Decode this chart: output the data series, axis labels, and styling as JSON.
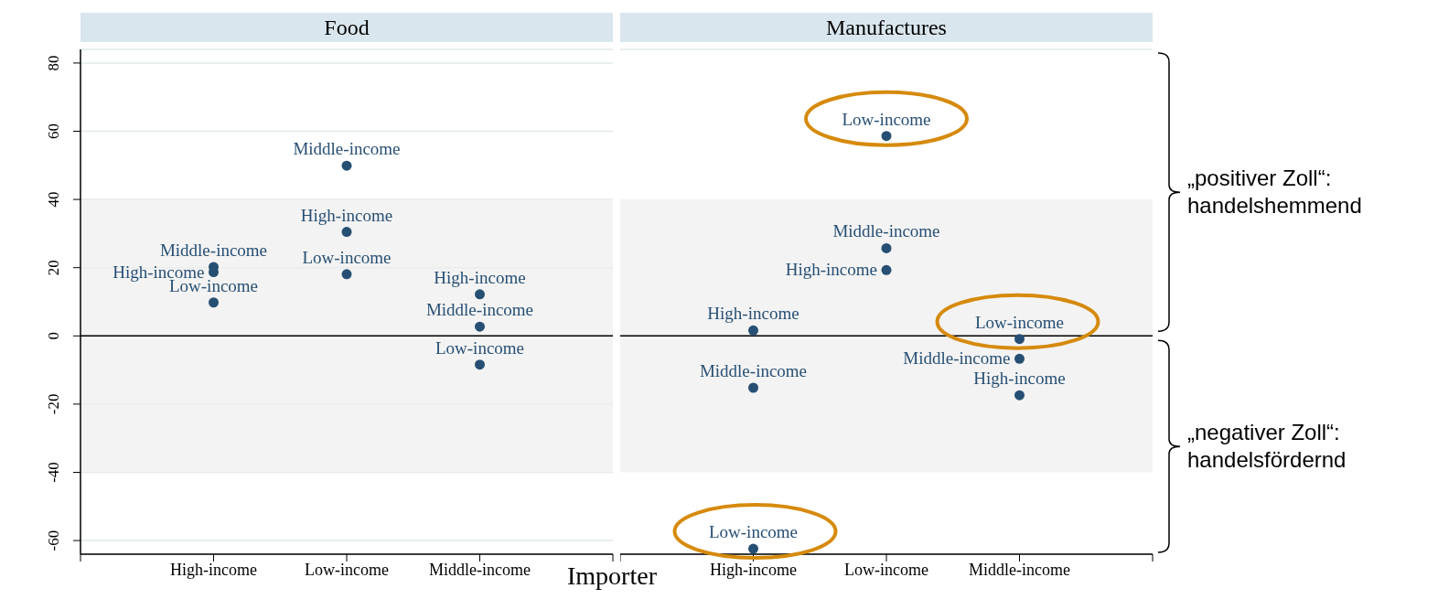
{
  "chart_data": [
    {
      "type": "scatter",
      "title": "Food",
      "xlabel": "Importer",
      "categories": [
        "High-income",
        "Low-income",
        "Middle-income"
      ],
      "series": [
        {
          "name": "Middle-income",
          "color": "#274f74",
          "values": [
            20.2,
            49.9,
            2.7
          ]
        },
        {
          "name": "High-income",
          "color": "#274f74",
          "values": [
            18.7,
            30.5,
            12.2
          ]
        },
        {
          "name": "Low-income",
          "color": "#274f74",
          "values": [
            9.8,
            18.1,
            -8.4
          ]
        }
      ],
      "ylim": [
        -64,
        84
      ],
      "yticks": [
        -60,
        -40,
        -20,
        0,
        20,
        40,
        60,
        80
      ],
      "grid": "y",
      "marker": "circle",
      "legend": false,
      "ref_lines": [
        {
          "axis": "y",
          "value": 0,
          "color": "#000000"
        }
      ],
      "bands": [
        {
          "axis": "y",
          "from": -40,
          "to": 40,
          "color": "#efefef"
        }
      ]
    },
    {
      "type": "scatter",
      "title": "Manufactures",
      "categories": [
        "High-income",
        "Low-income",
        "Middle-income"
      ],
      "series": [
        {
          "name": "Middle-income",
          "color": "#274f74",
          "values": [
            -15.2,
            25.7,
            -6.7
          ]
        },
        {
          "name": "High-income",
          "color": "#274f74",
          "values": [
            1.6,
            19.3,
            -17.4
          ]
        },
        {
          "name": "Low-income",
          "color": "#274f74",
          "values": [
            -62.4,
            58.6,
            -0.9
          ]
        }
      ],
      "ylim": [
        -64,
        84
      ],
      "yticks": [
        -60,
        -40,
        -20,
        0,
        20,
        40,
        60,
        80
      ],
      "tick_labels": "x",
      "grid": "y",
      "marker": "circle",
      "legend": false,
      "ref_lines": [
        {
          "axis": "y",
          "value": 0,
          "color": "#000000"
        }
      ],
      "bands": [
        {
          "axis": "y",
          "from": -40,
          "to": 40,
          "color": "#efefef"
        }
      ],
      "annotations": [
        "„positiver Zoll“: handelshemmend",
        "„negativer Zoll“: handelsfördernd"
      ]
    }
  ]
}
